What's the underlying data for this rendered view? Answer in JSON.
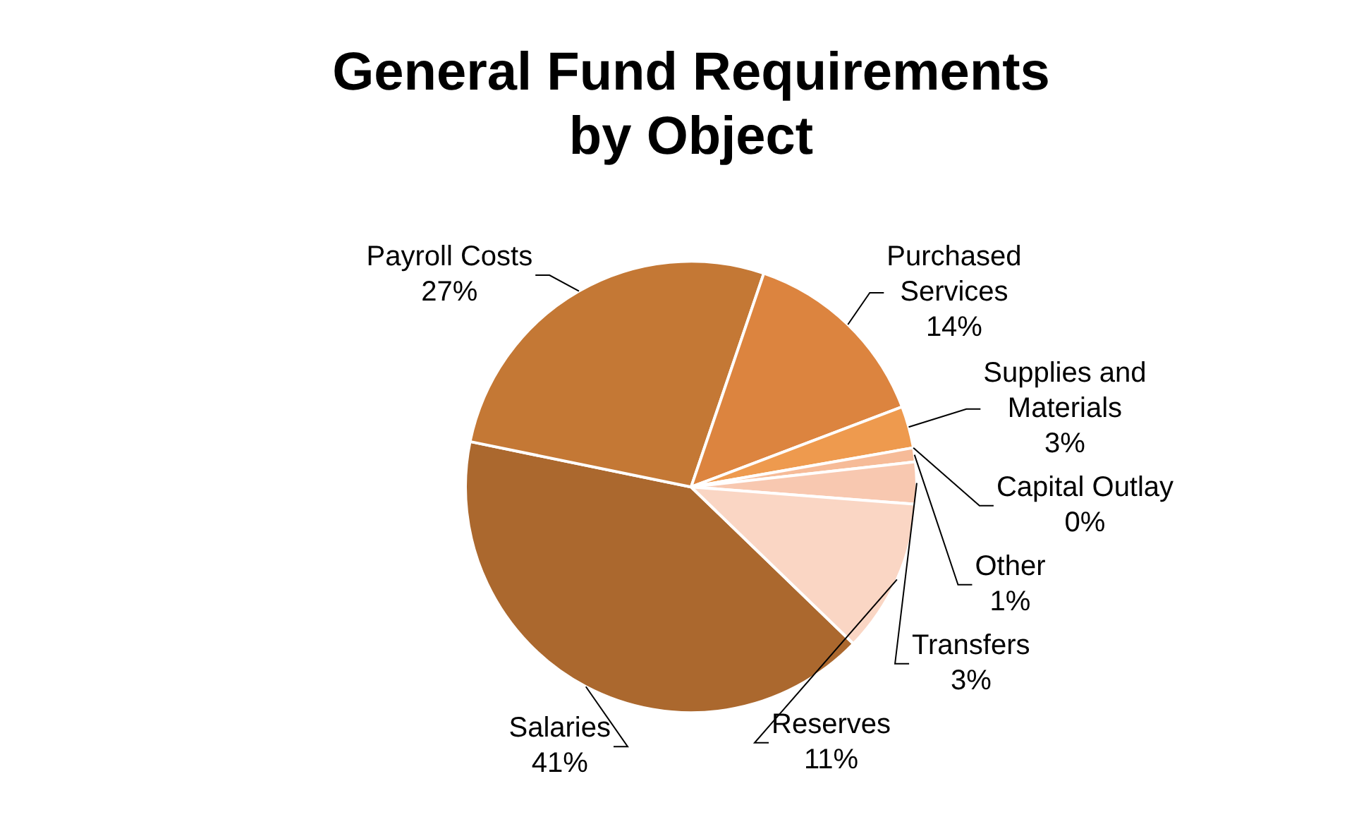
{
  "chart_data": {
    "type": "pie",
    "title": "General Fund Requirements by Object",
    "categories": [
      "Salaries",
      "Payroll Costs",
      "Purchased Services",
      "Supplies and Materials",
      "Capital Outlay",
      "Other",
      "Transfers",
      "Reserves"
    ],
    "values": [
      41,
      27,
      14,
      3,
      0,
      1,
      3,
      11
    ],
    "colors": [
      "#ab682e",
      "#c47835",
      "#dc843f",
      "#ee9a4e",
      "#f3ac7c",
      "#f6bb98",
      "#f8c8b0",
      "#fad6c4"
    ],
    "value_labels": [
      "41%",
      "27%",
      "14%",
      "3%",
      "0%",
      "1%",
      "3%",
      "11%"
    ]
  }
}
